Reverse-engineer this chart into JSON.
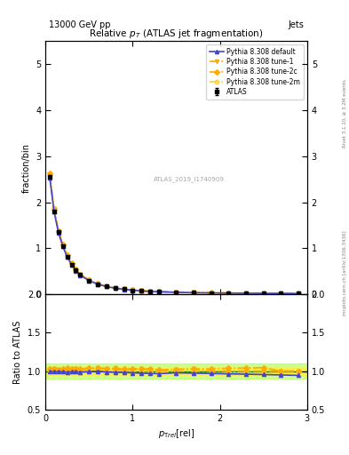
{
  "title": "Relative $p_T$ (ATLAS jet fragmentation)",
  "top_left_label": "13000 GeV pp",
  "top_right_label": "Jets",
  "ylabel_main": "fraction/bin",
  "ylabel_ratio": "Ratio to ATLAS",
  "xlabel": "$p_{\\mathrm{T}\\mathrm{rel}}[\\mathrm{rel}]$",
  "watermark": "ATLAS_2019_I1740909",
  "rivet_label": "Rivet 3.1.10, ≥ 3.2M events",
  "mcplots_label": "mcplots.cern.ch [arXiv:1306.3436]",
  "xlim": [
    0,
    3
  ],
  "ylim_main": [
    0,
    5.5
  ],
  "ylim_ratio": [
    0.5,
    2.0
  ],
  "yticks_main": [
    0,
    1,
    2,
    3,
    4,
    5
  ],
  "yticks_ratio": [
    0.5,
    1.0,
    1.5,
    2.0
  ],
  "xticks": [
    0,
    1,
    2,
    3
  ],
  "data_x": [
    0.05,
    0.1,
    0.15,
    0.2,
    0.25,
    0.3,
    0.35,
    0.4,
    0.5,
    0.6,
    0.7,
    0.8,
    0.9,
    1.0,
    1.1,
    1.2,
    1.3,
    1.5,
    1.7,
    1.9,
    2.1,
    2.3,
    2.5,
    2.7,
    2.9
  ],
  "data_y": [
    2.55,
    1.8,
    1.35,
    1.05,
    0.82,
    0.65,
    0.52,
    0.42,
    0.3,
    0.22,
    0.17,
    0.135,
    0.11,
    0.09,
    0.075,
    0.065,
    0.058,
    0.045,
    0.037,
    0.032,
    0.028,
    0.025,
    0.022,
    0.02,
    0.018
  ],
  "data_yerr": [
    0.03,
    0.02,
    0.015,
    0.012,
    0.01,
    0.008,
    0.007,
    0.006,
    0.005,
    0.004,
    0.003,
    0.003,
    0.002,
    0.002,
    0.002,
    0.002,
    0.001,
    0.001,
    0.001,
    0.001,
    0.001,
    0.001,
    0.001,
    0.001,
    0.001
  ],
  "py_default_x": [
    0.05,
    0.1,
    0.15,
    0.2,
    0.25,
    0.3,
    0.35,
    0.4,
    0.5,
    0.6,
    0.7,
    0.8,
    0.9,
    1.0,
    1.1,
    1.2,
    1.3,
    1.5,
    1.7,
    1.9,
    2.1,
    2.3,
    2.5,
    2.7,
    2.9
  ],
  "py_default_y": [
    2.53,
    1.79,
    1.34,
    1.04,
    0.81,
    0.645,
    0.515,
    0.415,
    0.298,
    0.22,
    0.168,
    0.133,
    0.108,
    0.088,
    0.073,
    0.063,
    0.056,
    0.044,
    0.036,
    0.031,
    0.027,
    0.024,
    0.021,
    0.019,
    0.017
  ],
  "py_tune1_x": [
    0.05,
    0.1,
    0.15,
    0.2,
    0.25,
    0.3,
    0.35,
    0.4,
    0.5,
    0.6,
    0.7,
    0.8,
    0.9,
    1.0,
    1.1,
    1.2,
    1.3,
    1.5,
    1.7,
    1.9,
    2.1,
    2.3,
    2.5,
    2.7,
    2.9
  ],
  "py_tune1_y": [
    2.6,
    1.85,
    1.37,
    1.07,
    0.84,
    0.665,
    0.535,
    0.43,
    0.31,
    0.228,
    0.175,
    0.138,
    0.112,
    0.092,
    0.077,
    0.066,
    0.058,
    0.046,
    0.038,
    0.032,
    0.028,
    0.025,
    0.022,
    0.02,
    0.018
  ],
  "py_tune2c_x": [
    0.05,
    0.1,
    0.15,
    0.2,
    0.25,
    0.3,
    0.35,
    0.4,
    0.5,
    0.6,
    0.7,
    0.8,
    0.9,
    1.0,
    1.1,
    1.2,
    1.3,
    1.5,
    1.7,
    1.9,
    2.1,
    2.3,
    2.5,
    2.7,
    2.9
  ],
  "py_tune2c_y": [
    2.62,
    1.86,
    1.38,
    1.08,
    0.845,
    0.67,
    0.538,
    0.432,
    0.312,
    0.23,
    0.176,
    0.14,
    0.113,
    0.093,
    0.077,
    0.067,
    0.059,
    0.046,
    0.038,
    0.033,
    0.029,
    0.026,
    0.023,
    0.02,
    0.018
  ],
  "py_tune2m_x": [
    0.05,
    0.1,
    0.15,
    0.2,
    0.25,
    0.3,
    0.35,
    0.4,
    0.5,
    0.6,
    0.7,
    0.8,
    0.9,
    1.0,
    1.1,
    1.2,
    1.3,
    1.5,
    1.7,
    1.9,
    2.1,
    2.3,
    2.5,
    2.7,
    2.9
  ],
  "py_tune2m_y": [
    2.58,
    1.82,
    1.36,
    1.06,
    0.83,
    0.656,
    0.526,
    0.424,
    0.305,
    0.224,
    0.172,
    0.136,
    0.11,
    0.09,
    0.075,
    0.065,
    0.057,
    0.045,
    0.037,
    0.032,
    0.028,
    0.025,
    0.022,
    0.02,
    0.018
  ],
  "color_default": "#4444cc",
  "color_tune1": "#ffaa00",
  "color_tune2c": "#ffaa00",
  "color_tune2m": "#ffaa00",
  "ratio_default_y": [
    0.992,
    0.994,
    0.993,
    0.99,
    0.988,
    0.992,
    0.99,
    0.988,
    0.993,
    1.0,
    0.988,
    0.985,
    0.982,
    0.978,
    0.973,
    0.969,
    0.966,
    0.978,
    0.973,
    0.969,
    0.964,
    0.96,
    0.955,
    0.95,
    0.944
  ],
  "ratio_tune1_y": [
    1.02,
    1.028,
    1.015,
    1.019,
    1.024,
    1.023,
    1.029,
    1.024,
    1.033,
    1.036,
    1.029,
    1.022,
    1.018,
    1.022,
    1.027,
    1.015,
    1.0,
    1.022,
    1.027,
    1.0,
    1.0,
    1.0,
    1.0,
    1.0,
    1.0
  ],
  "ratio_tune2c_y": [
    1.027,
    1.033,
    1.022,
    1.029,
    1.037,
    1.031,
    1.035,
    1.029,
    1.04,
    1.045,
    1.035,
    1.037,
    1.027,
    1.033,
    1.027,
    1.031,
    1.017,
    1.022,
    1.027,
    1.031,
    1.036,
    1.04,
    1.045,
    1.0,
    1.0
  ],
  "ratio_tune2m_y": [
    1.012,
    1.011,
    1.007,
    1.01,
    1.012,
    1.009,
    1.012,
    1.01,
    1.017,
    1.018,
    1.012,
    1.007,
    1.0,
    1.0,
    1.0,
    1.0,
    0.983,
    1.0,
    1.0,
    1.0,
    1.0,
    1.0,
    1.0,
    1.0,
    1.0
  ],
  "band_yellow_inner": 0.05,
  "band_green_outer": 0.1
}
